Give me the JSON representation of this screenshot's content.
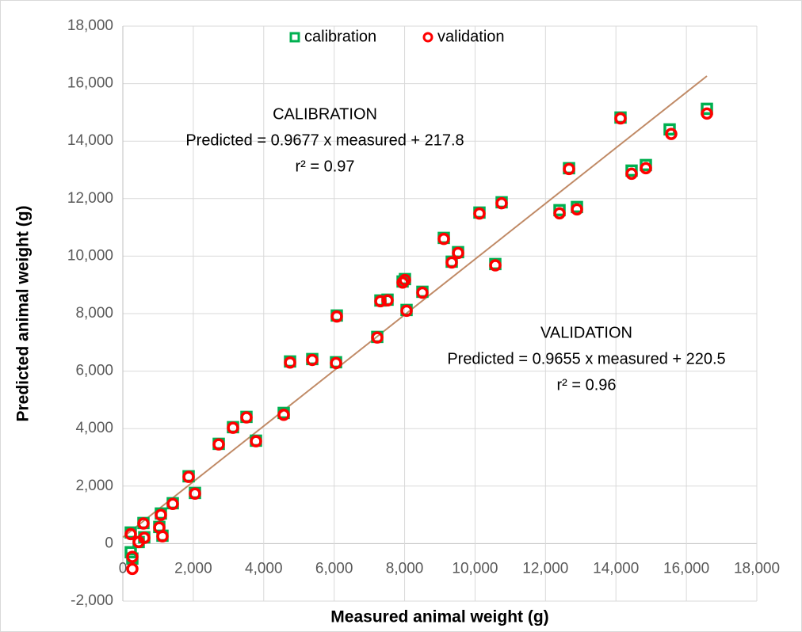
{
  "chart_data": {
    "type": "scatter",
    "x_label": "Measured animal weight (g)",
    "y_label": "Predicted animal weight (g)",
    "xlim": [
      0,
      18000
    ],
    "ylim": [
      -2000,
      18000
    ],
    "xticks": [
      0,
      {
        "value": 2000,
        "label": "2,000"
      },
      {
        "value": 4000,
        "label": "4,000"
      },
      {
        "value": 6000,
        "label": "6,000"
      },
      {
        "value": 8000,
        "label": "8,000"
      },
      {
        "value": 10000,
        "label": "10,000"
      },
      {
        "value": 12000,
        "label": "12,000"
      },
      {
        "value": 14000,
        "label": "14,000"
      },
      {
        "value": 16000,
        "label": "16,000"
      },
      {
        "value": 18000,
        "label": "18,000"
      }
    ],
    "yticks": [
      {
        "value": -2000,
        "label": "-2,000"
      },
      0,
      {
        "value": 2000,
        "label": "2,000"
      },
      {
        "value": 4000,
        "label": "4,000"
      },
      {
        "value": 6000,
        "label": "6,000"
      },
      {
        "value": 8000,
        "label": "8,000"
      },
      {
        "value": 10000,
        "label": "10,000"
      },
      {
        "value": 12000,
        "label": "12,000"
      },
      {
        "value": 14000,
        "label": "14,000"
      },
      {
        "value": 16000,
        "label": "16,000"
      },
      {
        "value": 18000,
        "label": "18,000"
      }
    ],
    "grid": true,
    "legend": "top",
    "series": [
      {
        "name": "calibration",
        "color": "#00b050",
        "marker": "square",
        "x": [
          225,
          225,
          270,
          450,
          585,
          608,
          1035,
          1080,
          1125,
          1418,
          1868,
          2048,
          2723,
          3128,
          3510,
          3780,
          4568,
          4748,
          5378,
          6053,
          6075,
          7223,
          7313,
          7515,
          7943,
          8010,
          8055,
          8505,
          9113,
          9338,
          9518,
          10125,
          10575,
          10755,
          12398,
          12668,
          12893,
          14130,
          14445,
          14850,
          15525,
          16583
        ],
        "y": [
          386,
          -300,
          -520,
          55,
          716,
          220,
          580,
          1047,
          275,
          1405,
          2342,
          1763,
          3471,
          4050,
          4408,
          3581,
          4545,
          6336,
          6419,
          6309,
          7934,
          7190,
          8457,
          8485,
          9118,
          9201,
          8127,
          8760,
          10634,
          9807,
          10138,
          11515,
          9725,
          11873,
          11598,
          13058,
          11708,
          14821,
          12975,
          13168,
          14408,
          15124
        ]
      },
      {
        "name": "validation",
        "color": "#ff0000",
        "marker": "circle",
        "x": [
          225,
          270,
          270,
          450,
          585,
          608,
          1035,
          1080,
          1125,
          1418,
          1868,
          2048,
          2723,
          3128,
          3510,
          3780,
          4568,
          4748,
          5378,
          6053,
          6075,
          7223,
          7313,
          7515,
          7943,
          8010,
          8055,
          8505,
          9113,
          9338,
          9518,
          10125,
          10575,
          10755,
          12398,
          12668,
          12893,
          14130,
          14445,
          14850,
          15570,
          16583
        ],
        "y": [
          330,
          -460,
          -880,
          55,
          700,
          200,
          560,
          1000,
          255,
          1380,
          2320,
          1740,
          3450,
          4030,
          4390,
          3560,
          4480,
          6300,
          6390,
          6280,
          7900,
          7170,
          8430,
          8460,
          9080,
          9170,
          8100,
          8730,
          10600,
          9780,
          10110,
          11480,
          9680,
          11840,
          11488,
          13030,
          11625,
          14790,
          12865,
          13058,
          14250,
          14959
        ]
      }
    ],
    "trend_line": {
      "color": "#c08a66",
      "x": [
        0,
        16583
      ],
      "y": [
        218,
        16264
      ]
    },
    "annotations": [
      {
        "lines": [
          "CALIBRATION",
          "Predicted = 0.9677 x measured + 217.8",
          "r² = 0.97"
        ]
      },
      {
        "lines": [
          "VALIDATION",
          "Predicted = 0.9655 x measured + 220.5",
          "r² = 0.96"
        ]
      }
    ]
  }
}
